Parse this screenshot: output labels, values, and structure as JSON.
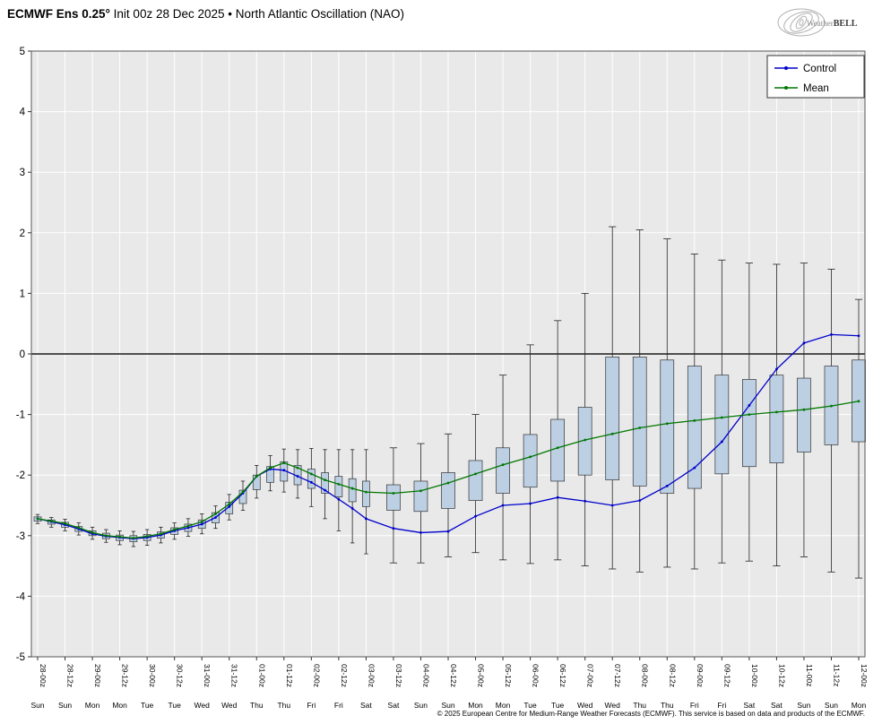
{
  "header": {
    "title_bold": "ECMWF Ens 0.25°",
    "title_rest": " Init 00z 28 Dec 2025 • North Atlantic Oscillation (NAO)",
    "logo_text_1": "Weather",
    "logo_text_2": "BELL"
  },
  "footer": {
    "copyright": "© 2025 European Centre for Medium-Range Weather Forecasts (ECMWF). This service is based on data and products of the ECMWF."
  },
  "chart_data": {
    "type": "box-whisker+line",
    "title": "ECMWF Ens 0.25° Init 00z 28 Dec 2025 • North Atlantic Oscillation (NAO)",
    "xlabel": "",
    "ylabel": "",
    "ylim": [
      -5,
      5
    ],
    "yticks": [
      -5,
      -4,
      -3,
      -2,
      -1,
      0,
      1,
      2,
      3,
      4,
      5
    ],
    "grid": true,
    "legend_position": "top-right",
    "colors": {
      "plot_bg": "#e9e9e9",
      "grid": "#ffffff",
      "zero_line": "#1a1a1a",
      "box_fill": "#bccfe3",
      "box_stroke": "#333333",
      "control": "#0000cc",
      "mean": "#007700"
    },
    "x_major_labels": [
      {
        "t": 0,
        "z": "28-00z",
        "day": "Sun"
      },
      {
        "t": 12,
        "z": "28-12z",
        "day": "Sun"
      },
      {
        "t": 24,
        "z": "29-00z",
        "day": "Mon"
      },
      {
        "t": 36,
        "z": "29-12z",
        "day": "Mon"
      },
      {
        "t": 48,
        "z": "30-00z",
        "day": "Tue"
      },
      {
        "t": 60,
        "z": "30-12z",
        "day": "Tue"
      },
      {
        "t": 72,
        "z": "31-00z",
        "day": "Wed"
      },
      {
        "t": 84,
        "z": "31-12z",
        "day": "Wed"
      },
      {
        "t": 96,
        "z": "01-00z",
        "day": "Thu"
      },
      {
        "t": 108,
        "z": "01-12z",
        "day": "Thu"
      },
      {
        "t": 120,
        "z": "02-00z",
        "day": "Fri"
      },
      {
        "t": 132,
        "z": "02-12z",
        "day": "Fri"
      },
      {
        "t": 144,
        "z": "03-00z",
        "day": "Sat"
      },
      {
        "t": 156,
        "z": "03-12z",
        "day": "Sat"
      },
      {
        "t": 168,
        "z": "04-00z",
        "day": "Sun"
      },
      {
        "t": 180,
        "z": "04-12z",
        "day": "Sun"
      },
      {
        "t": 192,
        "z": "05-00z",
        "day": "Mon"
      },
      {
        "t": 204,
        "z": "05-12z",
        "day": "Mon"
      },
      {
        "t": 216,
        "z": "06-00z",
        "day": "Tue"
      },
      {
        "t": 228,
        "z": "06-12z",
        "day": "Tue"
      },
      {
        "t": 240,
        "z": "07-00z",
        "day": "Wed"
      },
      {
        "t": 252,
        "z": "07-12z",
        "day": "Wed"
      },
      {
        "t": 264,
        "z": "08-00z",
        "day": "Thu"
      },
      {
        "t": 276,
        "z": "08-12z",
        "day": "Thu"
      },
      {
        "t": 288,
        "z": "09-00z",
        "day": "Fri"
      },
      {
        "t": 300,
        "z": "09-12z",
        "day": "Fri"
      },
      {
        "t": 312,
        "z": "10-00z",
        "day": "Sat"
      },
      {
        "t": 324,
        "z": "10-12z",
        "day": "Sat"
      },
      {
        "t": 336,
        "z": "11-00z",
        "day": "Sun"
      },
      {
        "t": 348,
        "z": "11-12z",
        "day": "Sun"
      },
      {
        "t": 360,
        "z": "12-00z",
        "day": "Mon"
      }
    ],
    "boxes": {
      "columns": [
        "t_hours",
        "whisker_low",
        "q1",
        "q3",
        "whisker_high"
      ],
      "rows": [
        [
          0,
          -2.8,
          -2.76,
          -2.69,
          -2.65
        ],
        [
          6,
          -2.86,
          -2.81,
          -2.74,
          -2.7
        ],
        [
          12,
          -2.92,
          -2.86,
          -2.78,
          -2.73
        ],
        [
          18,
          -2.99,
          -2.93,
          -2.85,
          -2.79
        ],
        [
          24,
          -3.06,
          -3.0,
          -2.92,
          -2.86
        ],
        [
          30,
          -3.11,
          -3.05,
          -2.96,
          -2.9
        ],
        [
          36,
          -3.15,
          -3.08,
          -2.99,
          -2.92
        ],
        [
          42,
          -3.18,
          -3.1,
          -3.0,
          -2.93
        ],
        [
          48,
          -3.16,
          -3.08,
          -2.98,
          -2.9
        ],
        [
          54,
          -3.12,
          -3.04,
          -2.94,
          -2.86
        ],
        [
          60,
          -3.06,
          -2.98,
          -2.87,
          -2.79
        ],
        [
          66,
          -3.01,
          -2.93,
          -2.81,
          -2.72
        ],
        [
          72,
          -2.97,
          -2.88,
          -2.74,
          -2.64
        ],
        [
          78,
          -2.88,
          -2.79,
          -2.62,
          -2.51
        ],
        [
          84,
          -2.74,
          -2.64,
          -2.45,
          -2.32
        ],
        [
          90,
          -2.58,
          -2.47,
          -2.25,
          -2.1
        ],
        [
          96,
          -2.38,
          -2.24,
          -2.0,
          -1.84
        ],
        [
          102,
          -2.26,
          -2.12,
          -1.86,
          -1.68
        ],
        [
          108,
          -2.28,
          -2.1,
          -1.78,
          -1.57
        ],
        [
          114,
          -2.38,
          -2.16,
          -1.84,
          -1.58
        ],
        [
          120,
          -2.52,
          -2.22,
          -1.9,
          -1.56
        ],
        [
          126,
          -2.72,
          -2.3,
          -1.96,
          -1.58
        ],
        [
          132,
          -2.92,
          -2.36,
          -2.02,
          -1.58
        ],
        [
          138,
          -3.12,
          -2.44,
          -2.06,
          -1.58
        ],
        [
          144,
          -3.3,
          -2.52,
          -2.1,
          -1.58
        ],
        [
          156,
          -3.45,
          -2.58,
          -2.16,
          -1.55
        ],
        [
          168,
          -3.45,
          -2.6,
          -2.1,
          -1.48
        ],
        [
          180,
          -3.35,
          -2.55,
          -1.96,
          -1.32
        ],
        [
          192,
          -3.28,
          -2.42,
          -1.76,
          -1.0
        ],
        [
          204,
          -3.4,
          -2.3,
          -1.55,
          -0.35
        ],
        [
          216,
          -3.46,
          -2.2,
          -1.33,
          0.15
        ],
        [
          228,
          -3.4,
          -2.1,
          -1.08,
          0.55
        ],
        [
          240,
          -3.5,
          -2.0,
          -0.88,
          1.0
        ],
        [
          252,
          -3.55,
          -2.08,
          -0.05,
          2.1
        ],
        [
          264,
          -3.6,
          -2.18,
          -0.05,
          2.05
        ],
        [
          276,
          -3.52,
          -2.3,
          -0.1,
          1.9
        ],
        [
          288,
          -3.55,
          -2.22,
          -0.2,
          1.65
        ],
        [
          300,
          -3.45,
          -1.98,
          -0.35,
          1.55
        ],
        [
          312,
          -3.42,
          -1.86,
          -0.42,
          1.5
        ],
        [
          324,
          -3.5,
          -1.8,
          -0.35,
          1.48
        ],
        [
          336,
          -3.35,
          -1.62,
          -0.4,
          1.5
        ],
        [
          348,
          -3.6,
          -1.5,
          -0.2,
          1.4
        ],
        [
          360,
          -3.7,
          -1.45,
          -0.1,
          0.9
        ]
      ]
    },
    "series": [
      {
        "name": "Control",
        "color": "#0000cc",
        "points": [
          [
            0,
            -2.72
          ],
          [
            6,
            -2.77
          ],
          [
            12,
            -2.82
          ],
          [
            18,
            -2.89
          ],
          [
            24,
            -2.97
          ],
          [
            30,
            -3.01
          ],
          [
            36,
            -3.03
          ],
          [
            42,
            -3.05
          ],
          [
            48,
            -3.03
          ],
          [
            54,
            -2.99
          ],
          [
            60,
            -2.92
          ],
          [
            66,
            -2.87
          ],
          [
            72,
            -2.81
          ],
          [
            78,
            -2.7
          ],
          [
            84,
            -2.52
          ],
          [
            90,
            -2.3
          ],
          [
            96,
            -2.02
          ],
          [
            102,
            -1.9
          ],
          [
            108,
            -1.92
          ],
          [
            114,
            -2.02
          ],
          [
            120,
            -2.12
          ],
          [
            126,
            -2.25
          ],
          [
            132,
            -2.4
          ],
          [
            138,
            -2.55
          ],
          [
            144,
            -2.72
          ],
          [
            156,
            -2.88
          ],
          [
            168,
            -2.95
          ],
          [
            180,
            -2.93
          ],
          [
            192,
            -2.68
          ],
          [
            204,
            -2.5
          ],
          [
            216,
            -2.47
          ],
          [
            228,
            -2.37
          ],
          [
            240,
            -2.43
          ],
          [
            252,
            -2.5
          ],
          [
            264,
            -2.42
          ],
          [
            276,
            -2.18
          ],
          [
            288,
            -1.88
          ],
          [
            300,
            -1.45
          ],
          [
            312,
            -0.85
          ],
          [
            324,
            -0.25
          ],
          [
            336,
            0.18
          ],
          [
            348,
            0.32
          ],
          [
            360,
            0.3
          ]
        ]
      },
      {
        "name": "Mean",
        "color": "#007700",
        "points": [
          [
            0,
            -2.72
          ],
          [
            6,
            -2.76
          ],
          [
            12,
            -2.8
          ],
          [
            18,
            -2.87
          ],
          [
            24,
            -2.95
          ],
          [
            30,
            -3.0
          ],
          [
            36,
            -3.02
          ],
          [
            42,
            -3.04
          ],
          [
            48,
            -3.01
          ],
          [
            54,
            -2.97
          ],
          [
            60,
            -2.9
          ],
          [
            66,
            -2.84
          ],
          [
            72,
            -2.77
          ],
          [
            78,
            -2.64
          ],
          [
            84,
            -2.48
          ],
          [
            90,
            -2.28
          ],
          [
            96,
            -2.02
          ],
          [
            102,
            -1.88
          ],
          [
            108,
            -1.8
          ],
          [
            114,
            -1.88
          ],
          [
            120,
            -1.98
          ],
          [
            126,
            -2.08
          ],
          [
            132,
            -2.15
          ],
          [
            138,
            -2.22
          ],
          [
            144,
            -2.28
          ],
          [
            156,
            -2.3
          ],
          [
            168,
            -2.26
          ],
          [
            180,
            -2.13
          ],
          [
            192,
            -1.98
          ],
          [
            204,
            -1.83
          ],
          [
            216,
            -1.7
          ],
          [
            228,
            -1.55
          ],
          [
            240,
            -1.42
          ],
          [
            252,
            -1.32
          ],
          [
            264,
            -1.22
          ],
          [
            276,
            -1.15
          ],
          [
            288,
            -1.1
          ],
          [
            300,
            -1.05
          ],
          [
            312,
            -1.0
          ],
          [
            324,
            -0.96
          ],
          [
            336,
            -0.92
          ],
          [
            348,
            -0.86
          ],
          [
            360,
            -0.78
          ]
        ]
      }
    ]
  }
}
